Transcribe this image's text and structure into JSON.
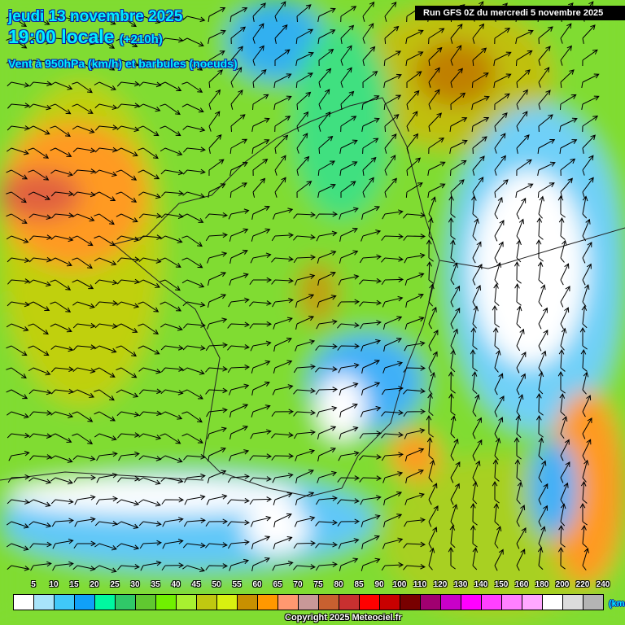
{
  "header": {
    "date": "jeudi 13 novembre 2025",
    "time": "19:00 locale",
    "lead": "(+210h)",
    "variable": "Vent à 950hPa (km/h) et barbules (noeuds)",
    "run": "Run GFS 0Z du mercredi 5 novembre 2025"
  },
  "legend": {
    "labels": [
      "5",
      "10",
      "15",
      "20",
      "25",
      "30",
      "35",
      "40",
      "45",
      "50",
      "55",
      "60",
      "65",
      "70",
      "75",
      "80",
      "85",
      "90",
      "100",
      "110",
      "120",
      "130",
      "140",
      "150",
      "160",
      "180",
      "200",
      "220",
      "240"
    ],
    "colors": [
      "#ffffff",
      "#a8e4fa",
      "#40c8f8",
      "#10a0f8",
      "#00f8a0",
      "#30c868",
      "#60c830",
      "#70f000",
      "#a8f030",
      "#c0c810",
      "#d8f010",
      "#c89000",
      "#ff9800",
      "#ff9870",
      "#c89898",
      "#c86030",
      "#c83030",
      "#ff0000",
      "#c80000",
      "#780000",
      "#a00070",
      "#c800c8",
      "#ff00ff",
      "#ff40ff",
      "#ff80ff",
      "#ffa8ff",
      "#ffffff",
      "#dcdcdc",
      "#b4b4b4"
    ],
    "unit": "(km/h)"
  },
  "footer": {
    "copyright": "Copyright 2025 Meteociel.fr"
  },
  "map": {
    "icons": [
      "wind-barb-icon"
    ]
  }
}
